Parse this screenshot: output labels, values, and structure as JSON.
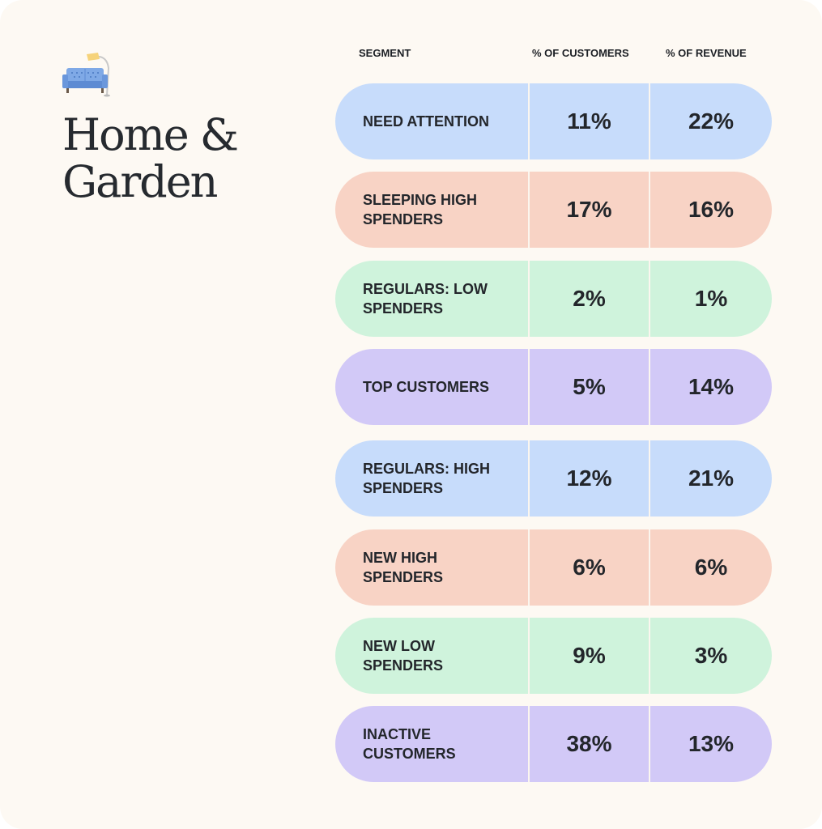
{
  "title": "Home & Garden",
  "logo": {
    "icon": "sofa-lamp-icon"
  },
  "colors": {
    "blue": "#c7dcfb",
    "peach": "#f8d3c5",
    "green": "#cff3dc",
    "purple": "#d2c9f7"
  },
  "chart_data": {
    "type": "table",
    "columns": [
      "SEGMENT",
      "% OF CUSTOMERS",
      "% OF REVENUE"
    ],
    "rows": [
      {
        "segment": "NEED ATTENTION",
        "customers": "11%",
        "revenue": "22%",
        "color": "#c7dcfb"
      },
      {
        "segment": "SLEEPING HIGH SPENDERS",
        "customers": "17%",
        "revenue": "16%",
        "color": "#f8d3c5"
      },
      {
        "segment": "REGULARS: LOW SPENDERS",
        "customers": "2%",
        "revenue": "1%",
        "color": "#cff3dc"
      },
      {
        "segment": "TOP CUSTOMERS",
        "customers": "5%",
        "revenue": "14%",
        "color": "#d2c9f7"
      },
      {
        "segment": "REGULARS: HIGH SPENDERS",
        "customers": "12%",
        "revenue": "21%",
        "color": "#c7dcfb"
      },
      {
        "segment": "NEW HIGH SPENDERS",
        "customers": "6%",
        "revenue": "6%",
        "color": "#f8d3c5"
      },
      {
        "segment": "NEW LOW SPENDERS",
        "customers": "9%",
        "revenue": "3%",
        "color": "#cff3dc"
      },
      {
        "segment": "INACTIVE CUSTOMERS",
        "customers": "38%",
        "revenue": "13%",
        "color": "#d2c9f7"
      }
    ]
  }
}
